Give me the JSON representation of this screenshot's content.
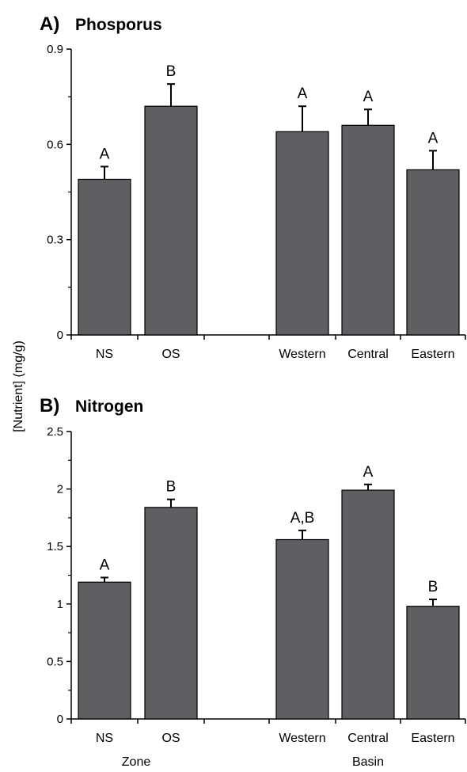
{
  "ylabel": "[Nutrient] (mg/g)",
  "group_labels": [
    "Zone",
    "Basin"
  ],
  "colors": {
    "bar": "#5f5f61",
    "axis": "#000000"
  },
  "chart_data": [
    {
      "type": "bar",
      "panel": "A)",
      "title": "Phosporus",
      "categories": [
        "NS",
        "OS",
        "Western",
        "Central",
        "Eastern"
      ],
      "values": [
        0.49,
        0.72,
        0.64,
        0.66,
        0.52
      ],
      "errors": [
        0.04,
        0.07,
        0.08,
        0.05,
        0.06
      ],
      "significance": [
        "A",
        "B",
        "A",
        "A",
        "A"
      ],
      "ylim": [
        0,
        0.9
      ],
      "yticks": [
        "0",
        "0.3",
        "0.6",
        "0.9"
      ]
    },
    {
      "type": "bar",
      "panel": "B)",
      "title": "Nitrogen",
      "categories": [
        "NS",
        "OS",
        "Western",
        "Central",
        "Eastern"
      ],
      "values": [
        1.19,
        1.84,
        1.56,
        1.99,
        0.98
      ],
      "errors": [
        0.04,
        0.07,
        0.08,
        0.05,
        0.06
      ],
      "significance": [
        "A",
        "B",
        "A,B",
        "A",
        "B"
      ],
      "ylim": [
        0,
        2.5
      ],
      "yticks": [
        "0",
        "0.5",
        "1",
        "1.5",
        "2",
        "2.5"
      ]
    }
  ]
}
